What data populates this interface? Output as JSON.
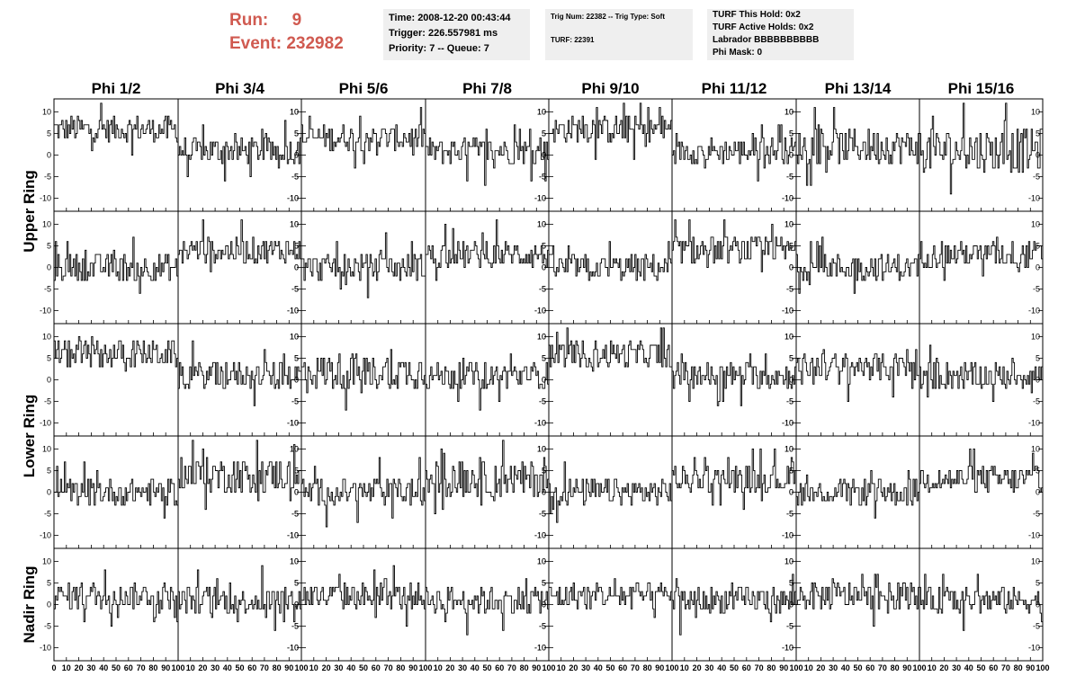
{
  "header": {
    "run_label": "Run:",
    "run_value": "9",
    "event_label": "Event:",
    "event_value": "232982",
    "box1": [
      "Time: 2008-12-20 00:43:44",
      "Trigger: 226.557981 ms",
      "Priority: 7 -- Queue: 7"
    ],
    "box2": [
      "Trig Num: 22382 -- Trig Type: Soft",
      "",
      "TURF: 22391"
    ],
    "box3": [
      "TURF This Hold: 0x2",
      "TURF Active Holds: 0x2",
      "Labrador BBBBBBBBBB",
      "Phi Mask: 0"
    ],
    "run_color": "#d05a50",
    "box_color": "#efefef"
  },
  "chart_data": {
    "type": "line",
    "columns": [
      "Phi 1/2",
      "Phi 3/4",
      "Phi 5/6",
      "Phi 7/8",
      "Phi 9/10",
      "Phi 11/12",
      "Phi 13/14",
      "Phi 15/16"
    ],
    "rows": [
      "Upper Ring",
      "Lower Ring",
      "Nadir Ring"
    ],
    "xlim": [
      0,
      100
    ],
    "ylim": [
      -13,
      13
    ],
    "x_ticks": [
      0,
      10,
      20,
      30,
      40,
      50,
      60,
      70,
      80,
      90,
      100
    ],
    "y_ticks": [
      -10,
      -5,
      0,
      5,
      10
    ],
    "x_tick_labels": "0 10 20 30 40 50 60 70 80 90 100",
    "n_samples": 96,
    "trace_color": "#000000",
    "baselines": [
      [
        6,
        1,
        4,
        1,
        6,
        1,
        2,
        1
      ],
      [
        0,
        4,
        0,
        3,
        0,
        4,
        0,
        3
      ],
      [
        6,
        1,
        2,
        1,
        6,
        1,
        3,
        1
      ],
      [
        0,
        4,
        0,
        3,
        0,
        3,
        0,
        3
      ],
      [
        2,
        1,
        2,
        1,
        2,
        1,
        2,
        1
      ]
    ],
    "amplitudes": [
      [
        3,
        3,
        3,
        3,
        3,
        3,
        4,
        5
      ],
      [
        3,
        3,
        3,
        3,
        3,
        3,
        3,
        3
      ],
      [
        3,
        3,
        4,
        3,
        3,
        3,
        3,
        3
      ],
      [
        3,
        4,
        3,
        4,
        3,
        3,
        3,
        3
      ],
      [
        3,
        3,
        3,
        3,
        3,
        3,
        3,
        3
      ]
    ]
  }
}
